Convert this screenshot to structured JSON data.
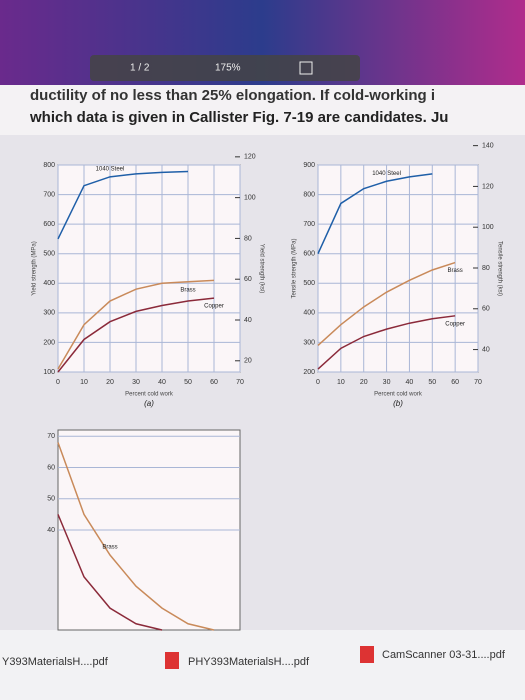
{
  "toolbar": {
    "page": "1 / 2",
    "zoom": "175%"
  },
  "document": {
    "lines": [
      "ductility of no less than 25% elongation. If cold-working i",
      "which data is given in Callister Fig. 7-19 are candidates. Ju"
    ]
  },
  "chart_data": [
    {
      "type": "line",
      "caption": "(a)",
      "x_label": "Percent cold work",
      "y_label": "Yield strength (MPa)",
      "y2_label": "Yield strength (ksi)",
      "x": [
        0,
        10,
        20,
        30,
        40,
        50,
        60,
        70
      ],
      "xlim": [
        0,
        70
      ],
      "xticks": [
        0,
        10,
        20,
        30,
        40,
        50,
        60,
        70
      ],
      "ylim": [
        100,
        800
      ],
      "yticks": [
        100,
        200,
        300,
        400,
        500,
        600,
        700,
        800
      ],
      "y2lim": [
        14.5,
        116
      ],
      "y2ticks": [
        20,
        40,
        60,
        80,
        100,
        120
      ],
      "grid": true,
      "series": [
        {
          "name": "1040 Steel",
          "color": "#1f5fa8",
          "values": [
            550,
            730,
            760,
            770,
            775,
            778,
            null,
            null
          ]
        },
        {
          "name": "Brass",
          "color": "#c98a5a",
          "values": [
            110,
            260,
            340,
            380,
            400,
            405,
            410,
            null
          ]
        },
        {
          "name": "Copper",
          "color": "#8b2a3a",
          "values": [
            100,
            210,
            270,
            305,
            325,
            340,
            350,
            null
          ]
        }
      ]
    },
    {
      "type": "line",
      "caption": "(b)",
      "x_label": "Percent cold work",
      "y_label": "Tensile strength (MPa)",
      "y2_label": "Tensile strength (ksi)",
      "x": [
        0,
        10,
        20,
        30,
        40,
        50,
        60,
        70
      ],
      "xlim": [
        0,
        70
      ],
      "xticks": [
        0,
        10,
        20,
        30,
        40,
        50,
        60,
        70
      ],
      "ylim": [
        200,
        900
      ],
      "yticks": [
        200,
        300,
        400,
        500,
        600,
        700,
        800,
        900
      ],
      "y2lim": [
        29,
        130.5
      ],
      "y2ticks": [
        40,
        60,
        80,
        100,
        120,
        140
      ],
      "grid": true,
      "series": [
        {
          "name": "1040 Steel",
          "color": "#1f5fa8",
          "values": [
            600,
            770,
            820,
            845,
            860,
            870,
            null,
            null
          ]
        },
        {
          "name": "Brass",
          "color": "#c98a5a",
          "values": [
            290,
            360,
            420,
            470,
            510,
            545,
            570,
            null
          ]
        },
        {
          "name": "Copper",
          "color": "#8b2a3a",
          "values": [
            210,
            280,
            320,
            345,
            365,
            380,
            390,
            null
          ]
        }
      ]
    },
    {
      "type": "line",
      "x": [
        0,
        10,
        20,
        30,
        40,
        50,
        60,
        70
      ],
      "xlim": [
        0,
        70
      ],
      "ylim": [
        8,
        72
      ],
      "yticks": [
        40,
        50,
        60,
        70
      ],
      "grid": true,
      "series": [
        {
          "name": "Brass",
          "color": "#c98a5a",
          "values": [
            68,
            45,
            32,
            22,
            15,
            10,
            8,
            null
          ]
        },
        {
          "color": "#8b2a3a",
          "values": [
            45,
            25,
            15,
            10,
            8,
            null,
            null,
            null
          ]
        }
      ]
    }
  ],
  "taskbar": {
    "downloads": [
      "Y393MaterialsH....pdf",
      "PHY393MaterialsH....pdf",
      "CamScanner 03-31....pdf"
    ]
  }
}
